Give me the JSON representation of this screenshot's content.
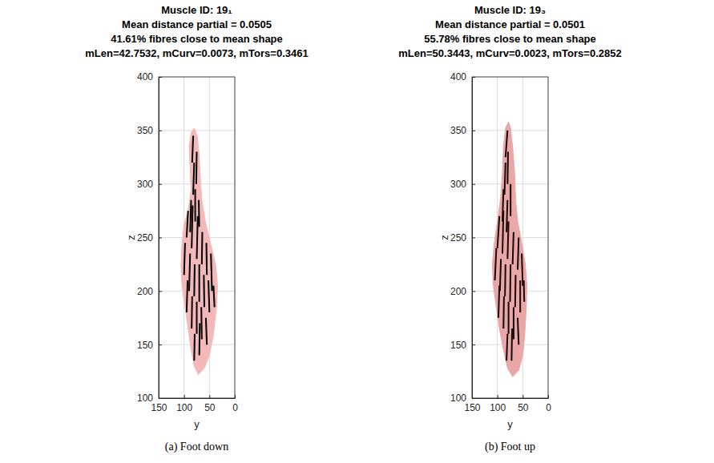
{
  "chart_data": [
    {
      "type": "line",
      "title": [
        "Muscle ID: 19₁",
        "Mean distance partial = 0.0505",
        "41.61% fibres close to mean shape",
        "mLen=42.7532, mCurv=0.0073, mTors=0.3461"
      ],
      "caption": "(a) Foot down",
      "xlabel": "y",
      "ylabel": "z",
      "xlim": [
        150,
        0
      ],
      "xticks": [
        150,
        100,
        50,
        0
      ],
      "ylim": [
        100,
        400
      ],
      "yticks": [
        100,
        150,
        200,
        250,
        300,
        350,
        400
      ],
      "grid": true,
      "series": [
        {
          "type": "area",
          "color": "#f4b8b8",
          "x": [
            72,
            60,
            50,
            42,
            36,
            34,
            38,
            48,
            58,
            65,
            68,
            70,
            74,
            80,
            86,
            90,
            88,
            86,
            92,
            100,
            104,
            106,
            104,
            98,
            92,
            86,
            80,
            72
          ],
          "values": [
            122,
            128,
            140,
            160,
            185,
            205,
            225,
            245,
            265,
            285,
            305,
            325,
            345,
            352,
            348,
            335,
            315,
            295,
            275,
            262,
            245,
            225,
            205,
            185,
            165,
            145,
            130,
            122
          ]
        },
        {
          "type": "line",
          "color": "#000000",
          "x": [
            95,
            92,
            null,
            85,
            83,
            null,
            75,
            73,
            null,
            65,
            64,
            null,
            55,
            56,
            null,
            45,
            47,
            null,
            100,
            98,
            null,
            90,
            88,
            null,
            80,
            79,
            null,
            70,
            70,
            null,
            60,
            61,
            null,
            50,
            52,
            null,
            40,
            42,
            null,
            95,
            93,
            null,
            85,
            84,
            null,
            75,
            75,
            null,
            65,
            66,
            null,
            55,
            57,
            null,
            80,
            79,
            null,
            70,
            69,
            null,
            82,
            80,
            null,
            76,
            75,
            null,
            84,
            82,
            null,
            78,
            78,
            null,
            70,
            71,
            null,
            88,
            86
          ],
          "values": [
            250,
            275,
            null,
            240,
            280,
            null,
            230,
            270,
            null,
            225,
            255,
            null,
            215,
            245,
            null,
            200,
            235,
            null,
            215,
            245,
            null,
            200,
            235,
            null,
            195,
            225,
            null,
            190,
            225,
            null,
            185,
            215,
            null,
            180,
            210,
            null,
            185,
            205,
            null,
            180,
            210,
            null,
            165,
            195,
            null,
            160,
            190,
            null,
            155,
            185,
            null,
            150,
            175,
            null,
            135,
            160,
            null,
            140,
            170,
            null,
            290,
            320,
            null,
            300,
            330,
            null,
            320,
            345,
            null,
            265,
            295,
            null,
            260,
            285,
            null,
            255,
            285
          ]
        }
      ]
    },
    {
      "type": "line",
      "title": [
        "Muscle ID: 19₃",
        "Mean distance partial = 0.0501",
        "55.78% fibres close to mean shape",
        "mLen=50.3443, mCurv=0.0023, mTors=0.2852"
      ],
      "caption": "(b) Foot up",
      "xlabel": "y",
      "ylabel": "z",
      "xlim": [
        150,
        0
      ],
      "xticks": [
        150,
        100,
        50,
        0
      ],
      "ylim": [
        100,
        400
      ],
      "yticks": [
        100,
        150,
        200,
        250,
        300,
        350,
        400
      ],
      "grid": true,
      "series": [
        {
          "type": "area",
          "color": "#e9a7a7",
          "x": [
            70,
            58,
            50,
            46,
            43,
            42,
            45,
            52,
            60,
            64,
            66,
            70,
            74,
            78,
            84,
            88,
            90,
            94,
            100,
            106,
            110,
            108,
            102,
            96,
            88,
            80,
            70
          ],
          "values": [
            120,
            126,
            140,
            160,
            185,
            205,
            225,
            245,
            265,
            285,
            310,
            335,
            352,
            358,
            352,
            335,
            310,
            285,
            265,
            245,
            225,
            205,
            185,
            165,
            145,
            128,
            120
          ]
        },
        {
          "type": "line",
          "color": "#1a0505",
          "x": [
            100,
            96,
            null,
            90,
            88,
            null,
            80,
            78,
            null,
            70,
            68,
            null,
            60,
            58,
            null,
            50,
            52,
            null,
            105,
            102,
            null,
            95,
            93,
            null,
            85,
            84,
            null,
            75,
            74,
            null,
            65,
            64,
            null,
            55,
            55,
            null,
            47,
            48,
            null,
            98,
            96,
            null,
            88,
            87,
            null,
            78,
            78,
            null,
            68,
            68,
            null,
            58,
            60,
            null,
            82,
            80,
            null,
            72,
            71,
            null,
            86,
            84,
            null,
            80,
            79,
            null,
            84,
            80,
            null,
            90,
            88,
            null,
            74,
            74,
            null,
            82,
            80
          ],
          "values": [
            240,
            270,
            null,
            235,
            275,
            null,
            230,
            265,
            null,
            225,
            255,
            null,
            220,
            250,
            null,
            205,
            235,
            null,
            210,
            240,
            null,
            200,
            230,
            null,
            195,
            225,
            null,
            190,
            225,
            null,
            185,
            215,
            null,
            180,
            210,
            null,
            190,
            210,
            null,
            175,
            205,
            null,
            165,
            195,
            null,
            160,
            190,
            null,
            155,
            185,
            null,
            150,
            175,
            null,
            135,
            160,
            null,
            135,
            165,
            null,
            290,
            320,
            null,
            300,
            330,
            null,
            325,
            350,
            null,
            265,
            295,
            null,
            270,
            300,
            null,
            255,
            285
          ]
        }
      ]
    }
  ]
}
